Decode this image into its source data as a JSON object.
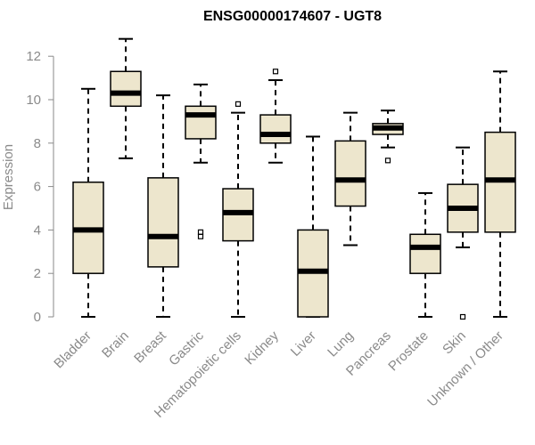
{
  "chart_data": {
    "type": "boxplot",
    "title": "ENSG00000174607 - UGT8",
    "xlabel": "",
    "ylabel": "Expression",
    "ylim": [
      0,
      12.5
    ],
    "yticks": [
      0,
      2,
      4,
      6,
      8,
      10,
      12
    ],
    "box_color": "#ede6cd",
    "categories": [
      "Bladder",
      "Brain",
      "Breast",
      "Gastric",
      "Hematopoietic cells",
      "Kidney",
      "Liver",
      "Lung",
      "Pancreas",
      "Prostate",
      "Skin",
      "Unknown / Other"
    ],
    "boxes": [
      {
        "name": "Bladder",
        "min": 0.0,
        "q1": 2.0,
        "median": 4.0,
        "q3": 6.2,
        "max": 10.5,
        "outliers": []
      },
      {
        "name": "Brain",
        "min": 7.3,
        "q1": 9.7,
        "median": 10.3,
        "q3": 11.3,
        "max": 12.8,
        "outliers": []
      },
      {
        "name": "Breast",
        "min": 0.0,
        "q1": 2.3,
        "median": 3.7,
        "q3": 6.4,
        "max": 10.2,
        "outliers": []
      },
      {
        "name": "Gastric",
        "min": 7.1,
        "q1": 8.2,
        "median": 9.3,
        "q3": 9.7,
        "max": 10.7,
        "outliers": [
          3.7,
          3.9
        ]
      },
      {
        "name": "Hematopoietic cells",
        "min": 0.0,
        "q1": 3.5,
        "median": 4.8,
        "q3": 5.9,
        "max": 9.4,
        "outliers": [
          9.8
        ]
      },
      {
        "name": "Kidney",
        "min": 7.1,
        "q1": 8.0,
        "median": 8.4,
        "q3": 9.3,
        "max": 10.9,
        "outliers": [
          11.3
        ]
      },
      {
        "name": "Liver",
        "min": 0.0,
        "q1": 0.0,
        "median": 2.1,
        "q3": 4.0,
        "max": 8.3,
        "outliers": []
      },
      {
        "name": "Lung",
        "min": 3.3,
        "q1": 5.1,
        "median": 6.3,
        "q3": 8.1,
        "max": 9.4,
        "outliers": []
      },
      {
        "name": "Pancreas",
        "min": 7.8,
        "q1": 8.4,
        "median": 8.7,
        "q3": 8.9,
        "max": 9.5,
        "outliers": [
          7.2
        ]
      },
      {
        "name": "Prostate",
        "min": 0.0,
        "q1": 2.0,
        "median": 3.2,
        "q3": 3.8,
        "max": 5.7,
        "outliers": []
      },
      {
        "name": "Skin",
        "min": 3.2,
        "q1": 3.9,
        "median": 5.0,
        "q3": 6.1,
        "max": 7.8,
        "outliers": [
          0.0
        ]
      },
      {
        "name": "Unknown / Other",
        "min": 0.0,
        "q1": 3.9,
        "median": 6.3,
        "q3": 8.5,
        "max": 11.3,
        "outliers": []
      }
    ]
  }
}
